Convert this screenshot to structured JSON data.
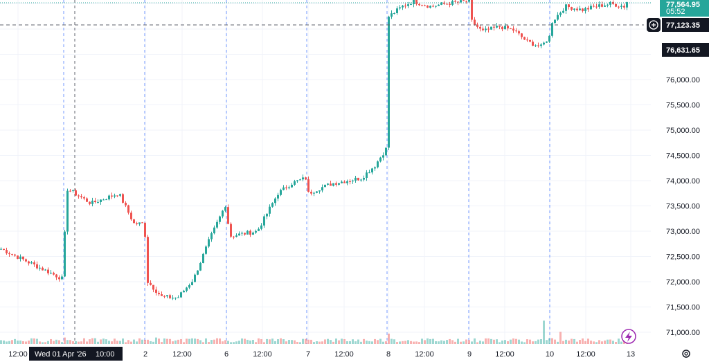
{
  "chart_data": {
    "type": "candlestick",
    "ylim": [
      70850,
      77620
    ],
    "y_ticks": [
      "76,000.00",
      "75,500.00",
      "75,000.00",
      "74,500.00",
      "74,000.00",
      "73,500.00",
      "73,000.00",
      "72,500.00",
      "72,000.00",
      "71,500.00",
      "71,000.00"
    ],
    "x_ticks": [
      "12:00",
      "2",
      "12:00",
      "6",
      "12:00",
      "7",
      "12:00",
      "8",
      "12:00",
      "9",
      "12:00",
      "10",
      "12:00",
      "13"
    ],
    "crosshair_date_label": "Wed 01 Apr '26",
    "crosshair_time_label": "10:00",
    "last_price": "77,564.95",
    "countdown": "05:52",
    "crosshair_price": "77,123.35",
    "low_label": "76,631.65",
    "colors": {
      "up": "#26a69a",
      "down": "#ef5350",
      "crosshair": "#2962ff",
      "badge_dark": "#131722"
    },
    "icons": {
      "add_alert": "plus-circle-icon",
      "flash": "lightning-icon",
      "settings": "gear-icon"
    },
    "session_anchors": [
      [
        0,
        72650
      ],
      [
        90,
        72050
      ],
      [
        94,
        73850
      ],
      [
        130,
        73550
      ],
      [
        170,
        73750
      ],
      [
        192,
        73150
      ],
      [
        207,
        73150
      ],
      [
        212,
        72000
      ],
      [
        232,
        71700
      ],
      [
        255,
        71680
      ],
      [
        278,
        72050
      ],
      [
        300,
        72800
      ],
      [
        325,
        73550
      ],
      [
        330,
        72900
      ],
      [
        350,
        72950
      ],
      [
        370,
        73000
      ],
      [
        400,
        73750
      ],
      [
        420,
        73950
      ],
      [
        440,
        74050
      ],
      [
        444,
        73750
      ],
      [
        460,
        73850
      ],
      [
        480,
        73950
      ],
      [
        500,
        74000
      ],
      [
        520,
        74050
      ],
      [
        540,
        74300
      ],
      [
        557,
        74650
      ],
      [
        560,
        77250
      ],
      [
        580,
        77450
      ],
      [
        595,
        77550
      ],
      [
        620,
        77450
      ],
      [
        650,
        77520
      ],
      [
        676,
        77550
      ],
      [
        680,
        77150
      ],
      [
        695,
        76950
      ],
      [
        720,
        77050
      ],
      [
        740,
        76980
      ],
      [
        760,
        76750
      ],
      [
        780,
        76650
      ],
      [
        792,
        76850
      ],
      [
        796,
        77150
      ],
      [
        815,
        77450
      ],
      [
        840,
        77380
      ],
      [
        860,
        77450
      ],
      [
        880,
        77500
      ],
      [
        900,
        77450
      ],
      [
        905,
        77565
      ]
    ],
    "volume_spikes": [
      [
        93,
        0.75
      ],
      [
        210,
        0.9
      ],
      [
        225,
        0.75
      ],
      [
        318,
        0.8
      ],
      [
        322,
        0.9
      ],
      [
        443,
        0.5
      ],
      [
        560,
        1.2
      ],
      [
        570,
        0.65
      ],
      [
        660,
        0.6
      ],
      [
        678,
        0.5
      ],
      [
        705,
        0.65
      ],
      [
        785,
        2.7
      ],
      [
        790,
        1.2
      ],
      [
        808,
        1.4
      ]
    ]
  }
}
